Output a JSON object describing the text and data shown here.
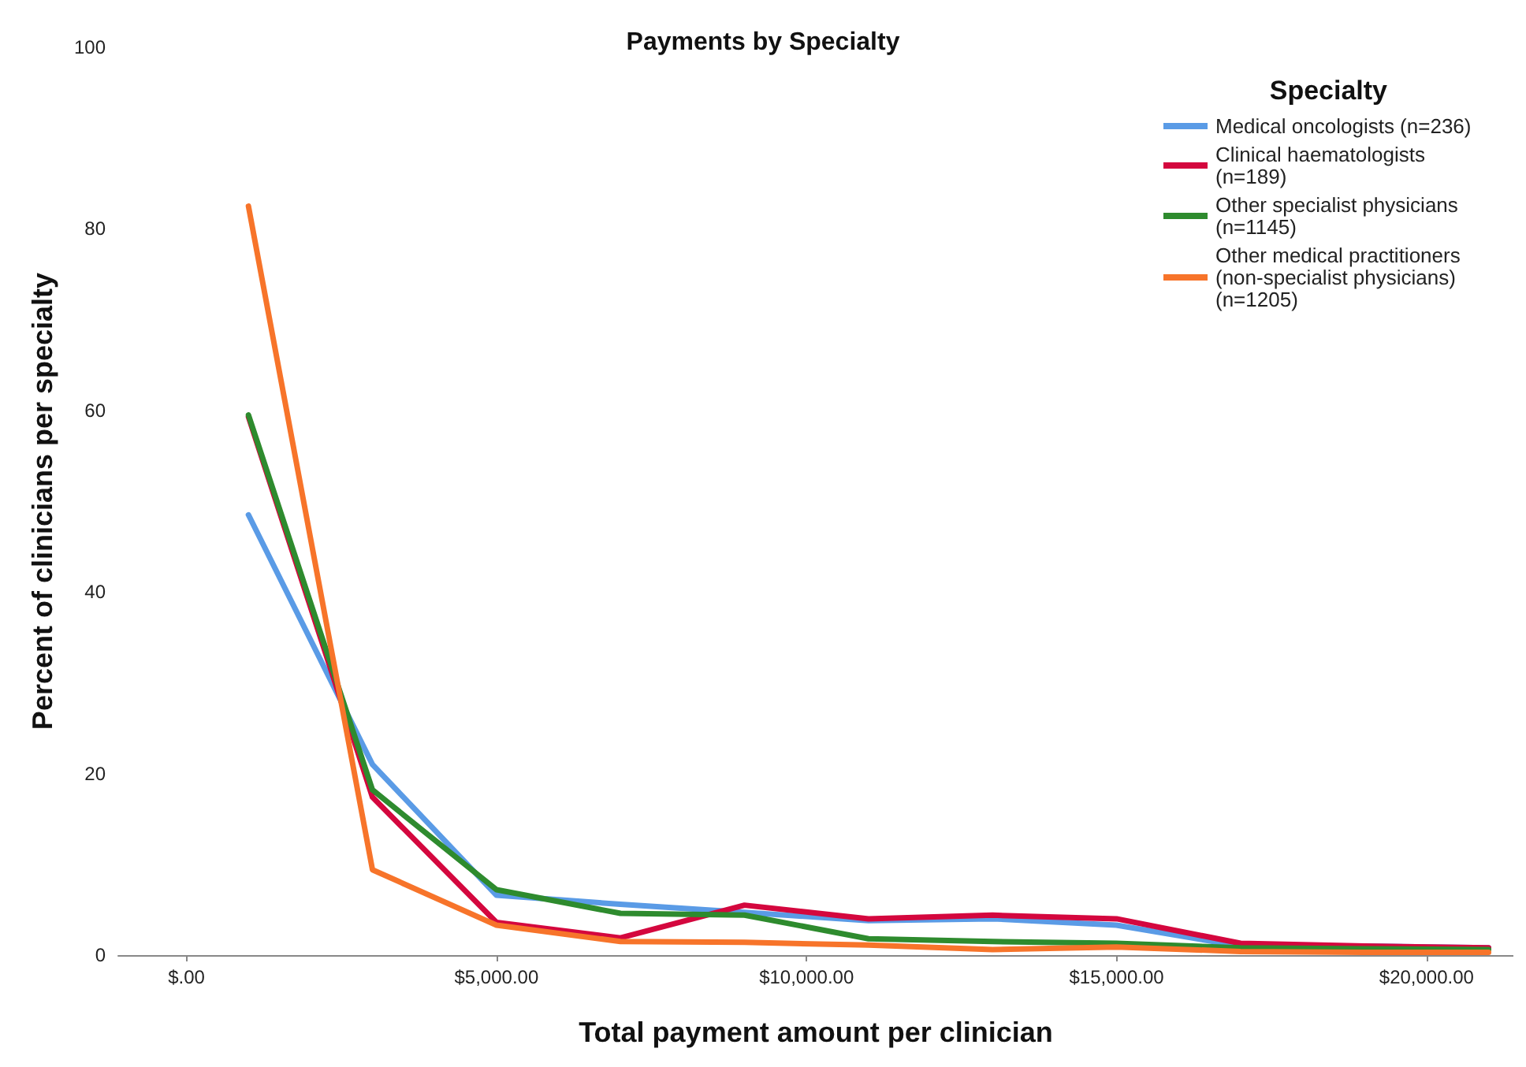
{
  "chart_data": {
    "type": "line",
    "title": "Payments by Specialty",
    "xlabel": "Total payment amount per clinician",
    "ylabel": "Percent of clinicians per specialty",
    "legend_title": "Specialty",
    "x": [
      1000,
      3000,
      5000,
      7000,
      9000,
      11000,
      13000,
      15000,
      17000,
      19000,
      21000
    ],
    "xlim": [
      -1100,
      21400
    ],
    "xticks": [
      {
        "value": 0,
        "label": "$.00"
      },
      {
        "value": 5000,
        "label": "$5,000.00"
      },
      {
        "value": 10000,
        "label": "$10,000.00"
      },
      {
        "value": 15000,
        "label": "$15,000.00"
      },
      {
        "value": 20000,
        "label": "$20,000.00"
      }
    ],
    "ylim": [
      0,
      100
    ],
    "yticks": [
      0,
      20,
      40,
      60,
      80,
      100
    ],
    "grid": false,
    "legend": "top right",
    "marker": "none",
    "line_style": "solid",
    "series": [
      {
        "name": "Medical oncologists (n=236)",
        "color": "#5a9be6",
        "values": [
          48.5,
          21.0,
          6.6,
          5.6,
          4.7,
          3.8,
          4.0,
          3.3,
          1.0,
          1.0,
          0.8
        ]
      },
      {
        "name": "Clinical haematologists (n=189)",
        "color": "#d4073e",
        "values": [
          59.3,
          17.4,
          3.6,
          1.9,
          5.5,
          4.0,
          4.4,
          4.0,
          1.3,
          1.0,
          0.8
        ]
      },
      {
        "name": "Other specialist physicians (n=1145)",
        "color": "#2e8b2e",
        "values": [
          59.5,
          18.2,
          7.2,
          4.6,
          4.4,
          1.8,
          1.5,
          1.3,
          0.8,
          0.7,
          0.6
        ]
      },
      {
        "name": "Other medical practitioners (non-specialist physicians) (n=1205)",
        "color": "#f7742a",
        "values": [
          82.5,
          9.4,
          3.3,
          1.5,
          1.4,
          1.1,
          0.6,
          0.9,
          0.4,
          0.3,
          0.3
        ]
      }
    ]
  }
}
